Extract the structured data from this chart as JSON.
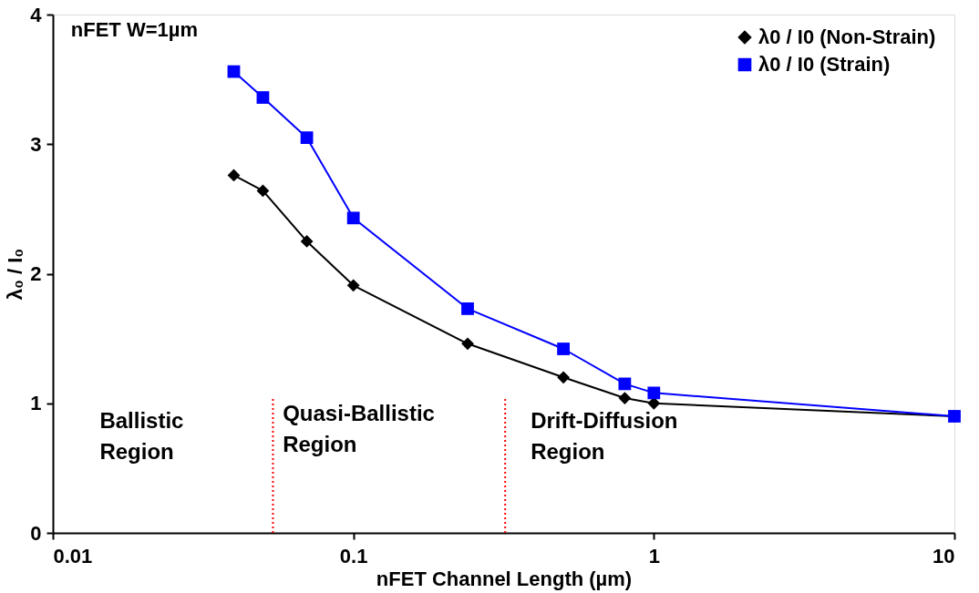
{
  "chart_data": {
    "type": "line",
    "xlabel": "nFET Channel Length (µm)",
    "ylabel": "λ₀ / I₀",
    "log": "x",
    "xlim": [
      0.01,
      10
    ],
    "xticks": [
      0.01,
      0.1,
      1,
      10
    ],
    "ylim": [
      0,
      4
    ],
    "yticks": [
      0,
      1,
      2,
      3,
      4
    ],
    "grid": false,
    "legend": "top right",
    "line_style": "solid",
    "series": [
      {
        "name": "λ0 / I0  (Non-Strain)",
        "color": "#000000",
        "marker": "diamond",
        "x": [
          0.04,
          0.05,
          0.07,
          0.1,
          0.24,
          0.5,
          0.8,
          1,
          10
        ],
        "values": [
          2.76,
          2.64,
          2.25,
          1.91,
          1.46,
          1.2,
          1.04,
          1.0,
          0.9
        ]
      },
      {
        "name": "λ0 / I0  (Strain)",
        "color": "#0000ff",
        "marker": "square",
        "x": [
          0.04,
          0.05,
          0.07,
          0.1,
          0.24,
          0.5,
          0.8,
          1,
          10
        ],
        "values": [
          3.56,
          3.36,
          3.05,
          2.43,
          1.73,
          1.42,
          1.15,
          1.08,
          0.9
        ]
      }
    ],
    "ref_lines": [
      {
        "axis": "x",
        "value": 0.054,
        "color": "#ff0000",
        "line_style": "dotted"
      },
      {
        "axis": "x",
        "value": 0.32,
        "color": "#ff0000",
        "line_style": "dotted"
      }
    ],
    "annotations": [
      "nFET W=1µm",
      "Ballistic Region",
      "Quasi-Ballistic Region",
      "Drift-Diffusion Region"
    ]
  }
}
